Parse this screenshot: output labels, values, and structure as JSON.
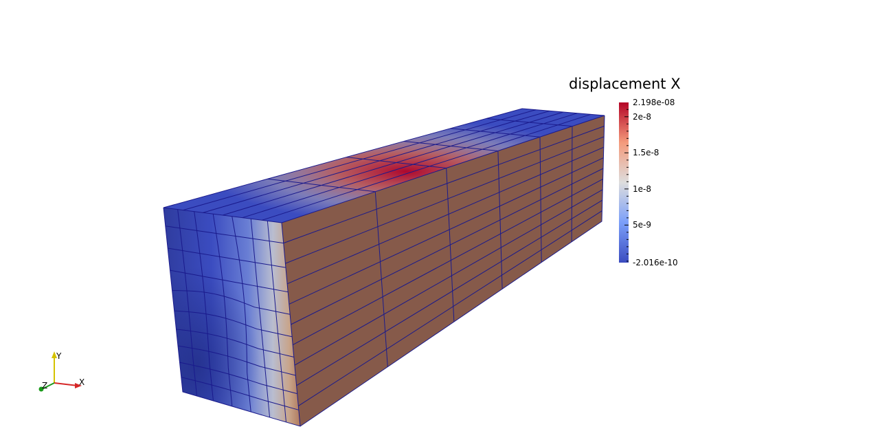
{
  "scene": {
    "colorbar": {
      "title": "displacement X",
      "max_label": "2.198e-08",
      "min_label": "-2.016e-10",
      "range": [
        -2.016e-10,
        2.198e-08
      ],
      "ticks": [
        {
          "value": 2e-08,
          "label": "2e-8"
        },
        {
          "value": 1.5e-08,
          "label": "1.5e-8"
        },
        {
          "value": 1e-08,
          "label": "1e-8"
        },
        {
          "value": 5e-09,
          "label": "5e-9"
        }
      ],
      "colormap": [
        "#3b4cc0",
        "#dddddd",
        "#b40426"
      ]
    },
    "orientation_axes": {
      "x_label": "X",
      "y_label": "Y",
      "z_label": "Z",
      "x_color": "#d62728",
      "y_color": "#d4c200",
      "z_color": "#1a9a1a"
    },
    "mesh": {
      "edge_color": "#1a1a8c",
      "side_face_color": "#865a4a"
    }
  }
}
